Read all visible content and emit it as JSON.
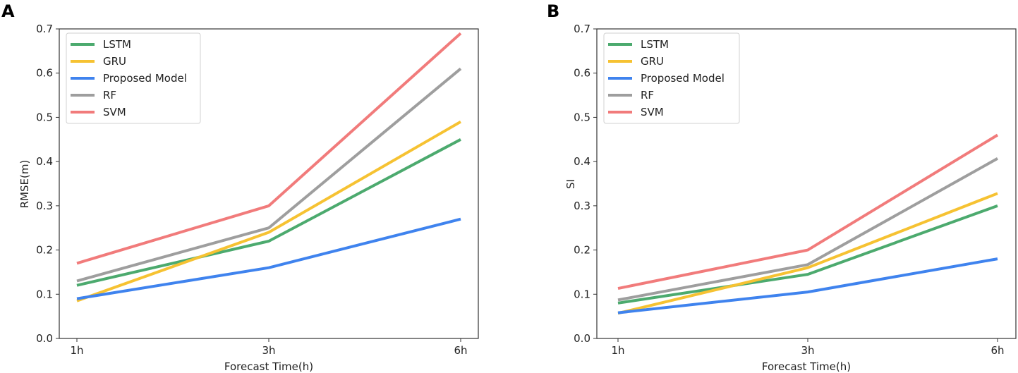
{
  "chart_data": [
    {
      "type": "line",
      "panel_label": "A",
      "title": "",
      "xlabel": "Forecast Time(h)",
      "ylabel": "RMSE(m)",
      "categories": [
        "1h",
        "3h",
        "6h"
      ],
      "ylim": [
        0,
        0.7
      ],
      "yticks": [
        "0.0",
        "0.1",
        "0.2",
        "0.3",
        "0.4",
        "0.5",
        "0.6",
        "0.7"
      ],
      "grid": false,
      "legend_position": "top-left",
      "series": [
        {
          "name": "LSTM",
          "values": [
            0.12,
            0.22,
            0.45
          ]
        },
        {
          "name": "GRU",
          "values": [
            0.085,
            0.24,
            0.49
          ]
        },
        {
          "name": "Proposed Model",
          "values": [
            0.09,
            0.16,
            0.27
          ]
        },
        {
          "name": "RF",
          "values": [
            0.13,
            0.25,
            0.61
          ]
        },
        {
          "name": "SVM",
          "values": [
            0.17,
            0.3,
            0.69
          ]
        }
      ]
    },
    {
      "type": "line",
      "panel_label": "B",
      "title": "",
      "xlabel": "Forecast Time(h)",
      "ylabel": "SI",
      "categories": [
        "1h",
        "3h",
        "6h"
      ],
      "ylim": [
        0,
        0.7
      ],
      "yticks": [
        "0.0",
        "0.1",
        "0.2",
        "0.3",
        "0.4",
        "0.5",
        "0.6",
        "0.7"
      ],
      "grid": false,
      "legend_position": "top-left",
      "series": [
        {
          "name": "LSTM",
          "values": [
            0.08,
            0.145,
            0.3
          ]
        },
        {
          "name": "GRU",
          "values": [
            0.057,
            0.16,
            0.328
          ]
        },
        {
          "name": "Proposed Model",
          "values": [
            0.058,
            0.105,
            0.18
          ]
        },
        {
          "name": "RF",
          "values": [
            0.087,
            0.167,
            0.407
          ]
        },
        {
          "name": "SVM",
          "values": [
            0.113,
            0.2,
            0.46
          ]
        }
      ]
    }
  ],
  "colors": {
    "LSTM": "#4caa6e",
    "GRU": "#f6c232",
    "Proposed Model": "#3f83ee",
    "RF": "#9e9e9e",
    "SVM": "#f17b7b"
  }
}
